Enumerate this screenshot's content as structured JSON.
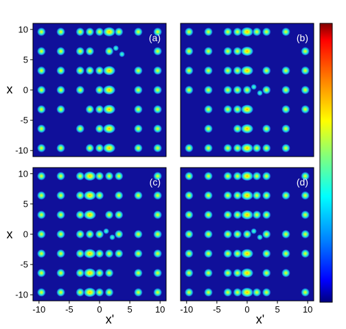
{
  "chart_data": {
    "type": "heatmap",
    "shared": {
      "xlabel": "x'",
      "ylabel": "x",
      "xlim": [
        -11,
        11
      ],
      "ylim": [
        -11,
        11
      ],
      "xticks": [
        -10,
        -5,
        0,
        5,
        10
      ],
      "yticks": [
        10,
        5,
        0,
        -5,
        -10
      ],
      "tick_labels_x": [
        "-10",
        "-5",
        "0",
        "5",
        "10"
      ],
      "tick_labels_y": [
        "10",
        "5",
        "0",
        "-5",
        "-10"
      ],
      "background_color": "#10109a",
      "colorbar": {
        "colors": [
          "#7f0000",
          "#ff0000",
          "#ff7f00",
          "#ffff00",
          "#7fff7f",
          "#00ffff",
          "#007fff",
          "#0000ff",
          "#00007f"
        ],
        "ticks_labeled": false
      }
    },
    "panels": [
      {
        "label": "(a)",
        "grid": [
          "#####D###",
          "####.#d.#",
          "#####D.##",
          "###.#D.##",
          "##.##D.##",
          "#.#.#D.##",
          "##.##D.##"
        ]
      },
      {
        "label": "(b)",
        "grid": [
          "####D###.",
          "####D...#",
          "####D.###",
          "#####d###",
          ".###D..##",
          ".#.#D.##.",
          "####D###."
        ]
      },
      {
        "label": "(c)",
        "grid": [
          "###D###.#",
          "###D#.###",
          "###D.##.#",
          "#####d###",
          "###D#####",
          "###D##.##",
          "###D##.##"
        ]
      },
      {
        "label": "(d)",
        "grid": [
          "####D##.#",
          "####D####",
          "####D##.#",
          "#####d###",
          "####D.###",
          "####D.##.",
          "####D##.#"
        ]
      }
    ]
  }
}
